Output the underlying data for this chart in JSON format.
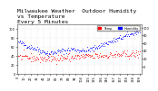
{
  "title_line1": "Milwaukee Weather  Outdoor Humidity",
  "title_line2": "vs Temperature",
  "title_line3": "Every 5 Minutes",
  "background_color": "#ffffff",
  "plot_bg_color": "#ffffff",
  "grid_color": "#cccccc",
  "blue_color": "#0000ff",
  "red_color": "#ff0000",
  "legend_blue_label": "Humidity",
  "legend_red_label": "Temp",
  "ylim_left": [
    0,
    110
  ],
  "ylim_right": [
    -20,
    110
  ],
  "num_points": 200,
  "humidity_mean": 75,
  "humidity_std": 12,
  "temp_mean": 30,
  "temp_std": 15,
  "title_fontsize": 4.5,
  "tick_fontsize": 2.5
}
